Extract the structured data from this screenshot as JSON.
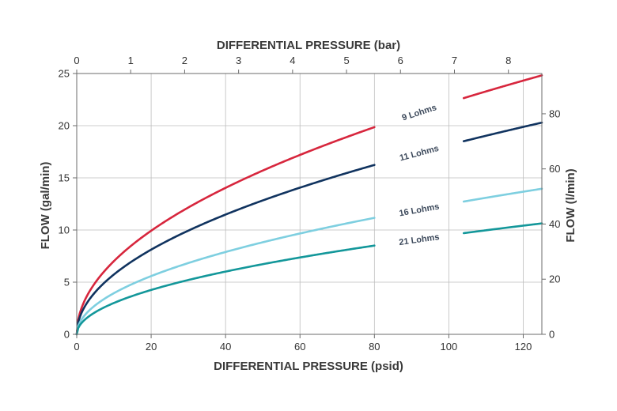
{
  "chart_data": {
    "type": "line",
    "title": "",
    "xlabel": "DIFFERENTIAL PRESSURE (psid)",
    "x2label": "DIFFERENTIAL PRESSURE (bar)",
    "ylabel": "FLOW (gal/min)",
    "y2label": "FLOW (l/min)",
    "xlim": [
      0,
      125
    ],
    "ylim": [
      0,
      25
    ],
    "x2lim": [
      0,
      8.62
    ],
    "y2lim": [
      0,
      94.6
    ],
    "xticks": [
      "0",
      "20",
      "40",
      "60",
      "80",
      "100",
      "120"
    ],
    "yticks": [
      "0",
      "5",
      "10",
      "15",
      "20",
      "25"
    ],
    "x2ticks": [
      "0",
      "1",
      "2",
      "3",
      "4",
      "5",
      "6",
      "7",
      "8"
    ],
    "y2ticks": [
      "0",
      "20",
      "40",
      "60",
      "80"
    ],
    "grid": true,
    "model": "flow = k * sqrt(pressure)",
    "series": [
      {
        "name": "9 Lohms",
        "color": "#d7263d",
        "k": 2.22,
        "x": [
          0,
          20,
          40,
          60,
          80,
          100,
          125
        ],
        "y": [
          0,
          9.9,
          14.0,
          17.2,
          19.9,
          22.2,
          24.8
        ]
      },
      {
        "name": "11 Lohms",
        "color": "#10335f",
        "k": 1.815,
        "x": [
          0,
          20,
          40,
          60,
          80,
          100,
          125
        ],
        "y": [
          0,
          8.1,
          11.5,
          14.1,
          16.2,
          18.2,
          20.3
        ]
      },
      {
        "name": "16 Lohms",
        "color": "#7ecfe0",
        "k": 1.248,
        "x": [
          0,
          20,
          40,
          60,
          80,
          100,
          125
        ],
        "y": [
          0,
          5.6,
          7.9,
          9.7,
          11.2,
          12.5,
          14.0
        ]
      },
      {
        "name": "21 Lohms",
        "color": "#13979a",
        "k": 0.951,
        "x": [
          0,
          20,
          40,
          60,
          80,
          100,
          125
        ],
        "y": [
          0,
          4.3,
          6.0,
          7.4,
          8.5,
          9.5,
          10.6
        ]
      }
    ]
  }
}
